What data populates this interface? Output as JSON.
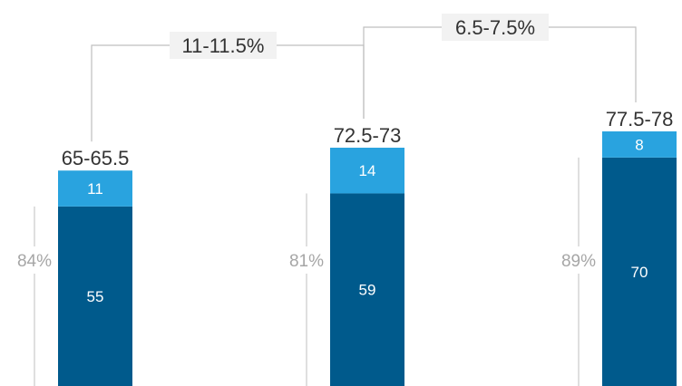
{
  "chart_data": {
    "type": "bar",
    "stacked": true,
    "categories": [
      "",
      "",
      ""
    ],
    "series": [
      {
        "values": [
          55,
          59,
          70
        ],
        "color": "#005a8c"
      },
      {
        "values": [
          11,
          14,
          8
        ],
        "color": "#29a3df"
      }
    ],
    "total_labels": [
      "65-65.5",
      "72.5-73",
      "77.5-78"
    ],
    "share_labels": [
      "84%",
      "81%",
      "89%"
    ],
    "growth_labels": [
      "11-11.5%",
      "6.5-7.5%"
    ],
    "ylim": [
      0,
      80
    ],
    "grid": false,
    "legend": "none",
    "colors": {
      "bottom_segment": "#005a8c",
      "top_segment": "#29a3df",
      "segment_text": "#ffffff",
      "total_text": "#333333",
      "share_text": "#a6a6a6",
      "bracket_line": "#bfbfbf",
      "growth_box": "#f2f2f2",
      "growth_text": "#333333"
    }
  }
}
